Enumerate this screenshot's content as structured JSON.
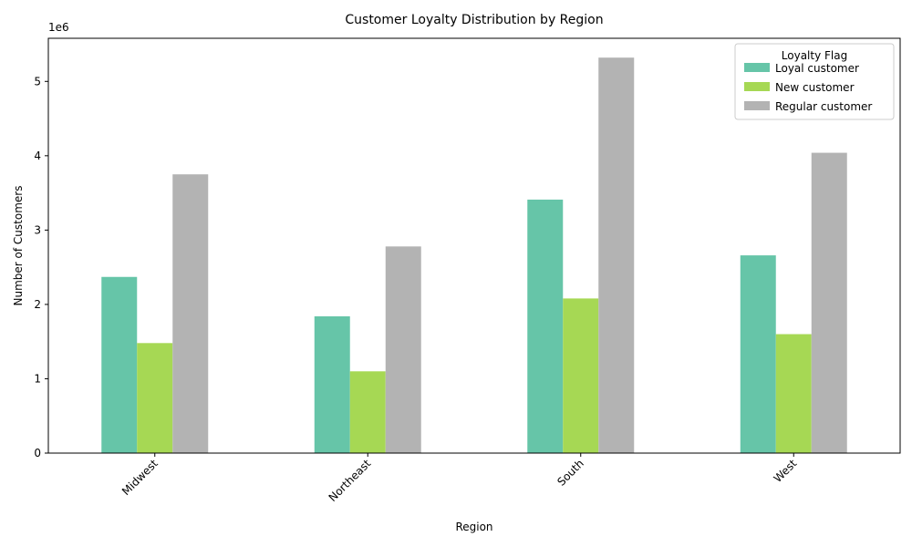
{
  "chart_data": {
    "type": "bar",
    "title": "Customer Loyalty Distribution by Region",
    "xlabel": "Region",
    "ylabel": "Number of Customers",
    "y_offset_label": "1e6",
    "categories": [
      "Midwest",
      "Northeast",
      "South",
      "West"
    ],
    "series": [
      {
        "name": "Loyal customer",
        "color": "#66c5a8",
        "values": [
          2370000,
          1840000,
          3410000,
          2660000
        ]
      },
      {
        "name": "New customer",
        "color": "#a6d854",
        "values": [
          1480000,
          1100000,
          2080000,
          1600000
        ]
      },
      {
        "name": "Regular customer",
        "color": "#b3b3b3",
        "values": [
          3750000,
          2780000,
          5320000,
          4040000
        ]
      }
    ],
    "ylim": [
      0,
      5580000
    ],
    "yticks": [
      0,
      1000000,
      2000000,
      3000000,
      4000000,
      5000000
    ],
    "ytick_labels": [
      "0",
      "1",
      "2",
      "3",
      "4",
      "5"
    ],
    "legend": {
      "title": "Loyalty Flag",
      "position": "top-right"
    },
    "grid": false
  }
}
